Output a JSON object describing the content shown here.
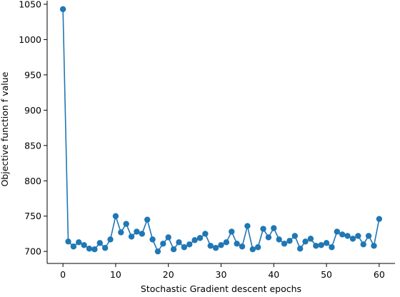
{
  "chart_data": {
    "type": "line",
    "title": "",
    "xlabel": "Stochastic Gradient descent epochs",
    "ylabel": "Objective function f value",
    "xlim": [
      -3,
      63
    ],
    "ylim": [
      683,
      1055
    ],
    "xticks": [
      0,
      10,
      20,
      30,
      40,
      50,
      60
    ],
    "yticks": [
      700,
      750,
      800,
      850,
      900,
      950,
      1000,
      1050
    ],
    "grid": false,
    "legend": "none",
    "marker": "circle",
    "color": "#1f77b4",
    "series": [
      {
        "x": [
          0,
          1,
          2,
          3,
          4,
          5,
          6,
          7,
          8,
          9,
          10,
          11,
          12,
          13,
          14,
          15,
          16,
          17,
          18,
          19,
          20,
          21,
          22,
          23,
          24,
          25,
          26,
          27,
          28,
          29,
          30,
          31,
          32,
          33,
          34,
          35,
          36,
          37,
          38,
          39,
          40,
          41,
          42,
          43,
          44,
          45,
          46,
          47,
          48,
          49,
          50,
          51,
          52,
          53,
          54,
          55,
          56,
          57,
          58,
          59,
          60
        ],
        "values": [
          1043,
          714,
          707,
          713,
          709,
          704,
          703,
          712,
          705,
          717,
          750,
          727,
          739,
          721,
          728,
          725,
          745,
          717,
          700,
          711,
          720,
          703,
          713,
          706,
          710,
          716,
          719,
          725,
          708,
          705,
          709,
          713,
          728,
          711,
          707,
          736,
          703,
          706,
          732,
          720,
          733,
          717,
          711,
          715,
          722,
          704,
          714,
          718,
          708,
          709,
          712,
          706,
          728,
          724,
          722,
          718,
          722,
          710,
          722,
          708,
          746
        ]
      }
    ]
  }
}
